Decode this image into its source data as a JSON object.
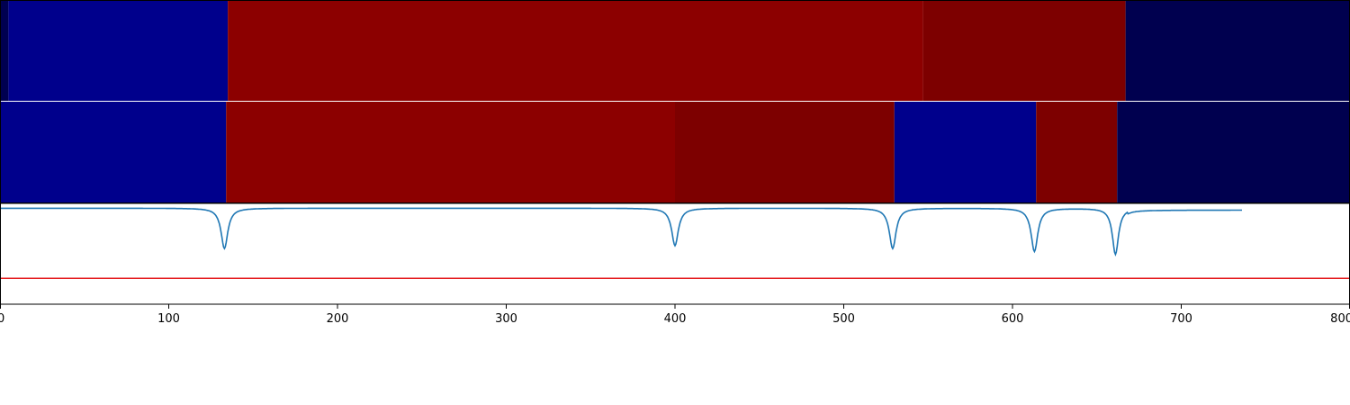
{
  "chart_data": {
    "type": "heatmap",
    "xlim": [
      0,
      800
    ],
    "x_ticks": [
      "0",
      "100",
      "200",
      "300",
      "400",
      "500",
      "600",
      "700",
      "800"
    ],
    "tracks": [
      {
        "name": "",
        "segments": [
          {
            "start": 0,
            "end": 5,
            "color": "#000050"
          },
          {
            "start": 5,
            "end": 135,
            "color": "#00008c"
          },
          {
            "start": 135,
            "end": 547,
            "color": "#8c0000"
          },
          {
            "start": 547,
            "end": 667,
            "color": "#7d0000"
          },
          {
            "start": 667,
            "end": 800,
            "color": "#00004f"
          }
        ]
      },
      {
        "name": "",
        "segments": [
          {
            "start": 0,
            "end": 134,
            "color": "#00008c"
          },
          {
            "start": 134,
            "end": 400,
            "color": "#8c0000"
          },
          {
            "start": 400,
            "end": 530,
            "color": "#7d0000"
          },
          {
            "start": 530,
            "end": 614,
            "color": "#00008c"
          },
          {
            "start": 614,
            "end": 662,
            "color": "#7d0000"
          },
          {
            "start": 662,
            "end": 800,
            "color": "#00004f"
          }
        ]
      }
    ],
    "signal": {
      "color": "#1f77b4",
      "baseline": 0,
      "dips": [
        {
          "x": 133,
          "depth": 0.42,
          "width": 2.4
        },
        {
          "x": 400,
          "depth": 0.39,
          "width": 2.4
        },
        {
          "x": 529,
          "depth": 0.42,
          "width": 2.4
        },
        {
          "x": 613,
          "depth": 0.45,
          "width": 2.4
        },
        {
          "x": 661,
          "depth": 0.48,
          "width": 2.2
        }
      ],
      "end_x": 736,
      "ylim": [
        -1,
        0.05
      ]
    },
    "threshold": {
      "y": -0.73,
      "color": "#e41a1c"
    }
  }
}
